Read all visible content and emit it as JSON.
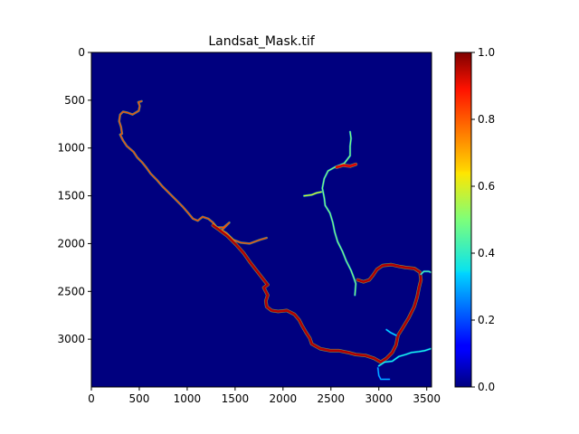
{
  "chart_data": {
    "type": "heatmap",
    "title": "Landsat_Mask.tif",
    "colormap": "jet",
    "background_value": 0.0,
    "x_axis": {
      "range": [
        0,
        3550
      ],
      "ticks": [
        0,
        500,
        1000,
        1500,
        2000,
        2500,
        3000,
        3500
      ],
      "tick_labels": [
        "0",
        "500",
        "1000",
        "1500",
        "2000",
        "2500",
        "3000",
        "3500"
      ]
    },
    "y_axis": {
      "range": [
        0,
        3500
      ],
      "inverted": true,
      "ticks": [
        0,
        500,
        1000,
        1500,
        2000,
        2500,
        3000
      ],
      "tick_labels": [
        "0",
        "500",
        "1000",
        "1500",
        "2000",
        "2500",
        "3000"
      ]
    },
    "colorbar": {
      "range": [
        0.0,
        1.0
      ],
      "ticks": [
        0.0,
        0.2,
        0.4,
        0.6,
        0.8,
        1.0
      ],
      "tick_labels": [
        "0.0",
        "0.2",
        "0.4",
        "0.6",
        "0.8",
        "1.0"
      ]
    },
    "features": [
      {
        "value": 0.8,
        "points": [
          [
            525,
            510
          ],
          [
            490,
            520
          ],
          [
            505,
            560
          ],
          [
            495,
            610
          ],
          [
            430,
            650
          ],
          [
            380,
            630
          ],
          [
            330,
            620
          ],
          [
            300,
            650
          ],
          [
            290,
            720
          ],
          [
            310,
            780
          ],
          [
            320,
            850
          ],
          [
            300,
            860
          ],
          [
            330,
            920
          ],
          [
            370,
            980
          ],
          [
            440,
            1040
          ],
          [
            480,
            1100
          ],
          [
            530,
            1150
          ],
          [
            570,
            1200
          ],
          [
            620,
            1270
          ],
          [
            680,
            1330
          ],
          [
            740,
            1400
          ],
          [
            810,
            1470
          ],
          [
            880,
            1540
          ],
          [
            950,
            1610
          ],
          [
            1010,
            1680
          ],
          [
            1060,
            1740
          ],
          [
            1110,
            1760
          ],
          [
            1160,
            1720
          ],
          [
            1220,
            1740
          ],
          [
            1270,
            1780
          ],
          [
            1310,
            1830
          ],
          [
            1380,
            1830
          ],
          [
            1440,
            1780
          ],
          [
            1390,
            1830
          ],
          [
            1360,
            1860
          ],
          [
            1410,
            1890
          ],
          [
            1480,
            1960
          ],
          [
            1560,
            1990
          ],
          [
            1650,
            2000
          ],
          [
            1760,
            1960
          ],
          [
            1830,
            1940
          ]
        ]
      },
      {
        "value": 0.95,
        "points": [
          [
            1270,
            1810
          ],
          [
            1340,
            1860
          ],
          [
            1420,
            1920
          ],
          [
            1510,
            2010
          ],
          [
            1590,
            2100
          ],
          [
            1660,
            2200
          ],
          [
            1730,
            2290
          ],
          [
            1800,
            2380
          ],
          [
            1840,
            2430
          ],
          [
            1800,
            2460
          ],
          [
            1840,
            2540
          ],
          [
            1820,
            2600
          ],
          [
            1830,
            2660
          ],
          [
            1880,
            2700
          ],
          [
            1950,
            2710
          ],
          [
            2040,
            2700
          ],
          [
            2120,
            2740
          ],
          [
            2170,
            2800
          ],
          [
            2200,
            2860
          ],
          [
            2240,
            2930
          ],
          [
            2280,
            2990
          ],
          [
            2300,
            3050
          ],
          [
            2390,
            3100
          ],
          [
            2490,
            3120
          ],
          [
            2580,
            3120
          ],
          [
            2680,
            3140
          ],
          [
            2760,
            3160
          ],
          [
            2860,
            3170
          ],
          [
            2950,
            3200
          ],
          [
            3020,
            3240
          ],
          [
            3080,
            3200
          ],
          [
            3140,
            3140
          ],
          [
            3180,
            3060
          ],
          [
            3200,
            2960
          ],
          [
            3250,
            2880
          ],
          [
            3310,
            2780
          ],
          [
            3370,
            2660
          ],
          [
            3400,
            2560
          ],
          [
            3420,
            2460
          ],
          [
            3440,
            2380
          ],
          [
            3430,
            2300
          ],
          [
            3370,
            2260
          ],
          [
            3280,
            2250
          ],
          [
            3220,
            2240
          ],
          [
            3130,
            2220
          ],
          [
            3040,
            2230
          ],
          [
            2980,
            2270
          ],
          [
            2940,
            2330
          ],
          [
            2900,
            2380
          ],
          [
            2840,
            2400
          ],
          [
            2780,
            2380
          ]
        ]
      },
      {
        "value": 0.5,
        "points": [
          [
            2700,
            830
          ],
          [
            2710,
            900
          ],
          [
            2700,
            980
          ],
          [
            2700,
            1080
          ],
          [
            2640,
            1160
          ],
          [
            2540,
            1200
          ],
          [
            2470,
            1240
          ],
          [
            2430,
            1320
          ],
          [
            2410,
            1420
          ],
          [
            2430,
            1520
          ],
          [
            2440,
            1600
          ],
          [
            2490,
            1680
          ],
          [
            2520,
            1780
          ],
          [
            2540,
            1880
          ],
          [
            2570,
            1980
          ],
          [
            2620,
            2080
          ],
          [
            2660,
            2180
          ],
          [
            2710,
            2280
          ],
          [
            2740,
            2360
          ],
          [
            2760,
            2420
          ],
          [
            2750,
            2540
          ]
        ]
      },
      {
        "value": 0.9,
        "points": [
          [
            2560,
            1200
          ],
          [
            2630,
            1180
          ],
          [
            2700,
            1190
          ],
          [
            2760,
            1170
          ]
        ]
      },
      {
        "value": 0.4,
        "points": [
          [
            3000,
            3280
          ],
          [
            3060,
            3240
          ],
          [
            3140,
            3230
          ],
          [
            3210,
            3180
          ],
          [
            3280,
            3160
          ],
          [
            3340,
            3140
          ],
          [
            3420,
            3130
          ],
          [
            3480,
            3120
          ],
          [
            3540,
            3100
          ]
        ]
      },
      {
        "value": 0.3,
        "points": [
          [
            2990,
            3300
          ],
          [
            3000,
            3380
          ],
          [
            3020,
            3420
          ],
          [
            3110,
            3420
          ]
        ]
      },
      {
        "value": 0.45,
        "points": [
          [
            3440,
            2320
          ],
          [
            3470,
            2290
          ],
          [
            3520,
            2290
          ],
          [
            3540,
            2300
          ]
        ]
      },
      {
        "value": 0.35,
        "points": [
          [
            3180,
            2960
          ],
          [
            3120,
            2930
          ],
          [
            3080,
            2900
          ]
        ]
      },
      {
        "value": 0.6,
        "points": [
          [
            2220,
            1500
          ],
          [
            2300,
            1490
          ],
          [
            2350,
            1470
          ],
          [
            2400,
            1460
          ]
        ]
      }
    ]
  }
}
